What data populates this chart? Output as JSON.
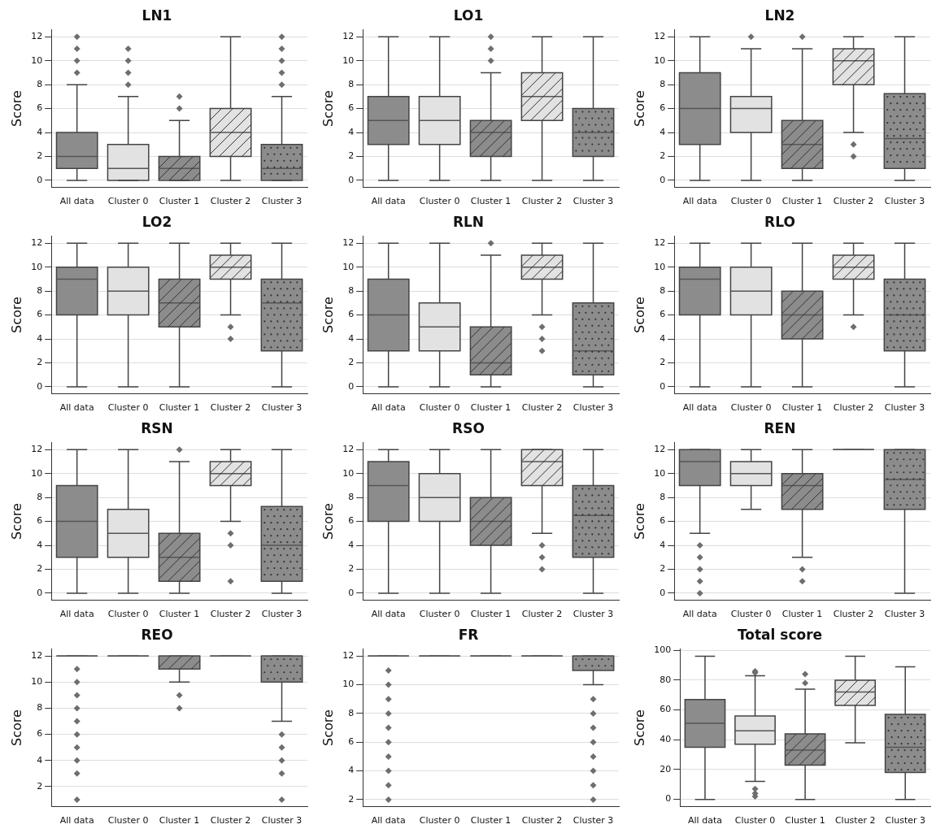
{
  "chart_data": [
    {
      "type": "box",
      "title": "LN1",
      "ylabel": "Score",
      "categories": [
        "All data",
        "Cluster 0",
        "Cluster 1",
        "Cluster 2",
        "Cluster 3"
      ],
      "colors": [
        "#8c8c8c",
        "#e2e2e2",
        "#8c8c8c",
        "#e2e2e2",
        "#8c8c8c"
      ],
      "ylim": [
        -0.6,
        12.6
      ],
      "yticks": [
        0,
        2,
        4,
        6,
        8,
        10,
        12
      ],
      "grid": "y",
      "marker": "diamond",
      "boxes": [
        {
          "low": 0,
          "q1": 1,
          "median": 2,
          "q3": 4,
          "high": 8,
          "outliers": [
            9,
            10,
            11,
            12
          ]
        },
        {
          "low": 0,
          "q1": 0,
          "median": 1,
          "q3": 3,
          "high": 7,
          "outliers": [
            8,
            9,
            10,
            11
          ]
        },
        {
          "low": 0,
          "q1": 0,
          "median": 1,
          "q3": 2,
          "high": 5,
          "outliers": [
            6,
            7
          ]
        },
        {
          "low": 0,
          "q1": 2,
          "median": 4,
          "q3": 6,
          "high": 12
        },
        {
          "low": 0,
          "q1": 0,
          "median": 1,
          "q3": 3,
          "high": 7,
          "outliers": [
            8,
            9,
            10,
            11,
            12
          ]
        }
      ]
    },
    {
      "type": "box",
      "title": "LO1",
      "ylabel": "Score",
      "categories": [
        "All data",
        "Cluster 0",
        "Cluster 1",
        "Cluster 2",
        "Cluster 3"
      ],
      "colors": [
        "#8c8c8c",
        "#e2e2e2",
        "#8c8c8c",
        "#e2e2e2",
        "#8c8c8c"
      ],
      "ylim": [
        -0.6,
        12.6
      ],
      "yticks": [
        0,
        2,
        4,
        6,
        8,
        10,
        12
      ],
      "grid": "y",
      "marker": "diamond",
      "boxes": [
        {
          "low": 0,
          "q1": 3,
          "median": 5,
          "q3": 7,
          "high": 12
        },
        {
          "low": 0,
          "q1": 3,
          "median": 5,
          "q3": 7,
          "high": 12
        },
        {
          "low": 0,
          "q1": 2,
          "median": 4,
          "q3": 5,
          "high": 9,
          "outliers": [
            10,
            11,
            12
          ]
        },
        {
          "low": 0,
          "q1": 5,
          "median": 7,
          "q3": 9,
          "high": 12
        },
        {
          "low": 0,
          "q1": 2,
          "median": 4,
          "q3": 6,
          "high": 12
        }
      ]
    },
    {
      "type": "box",
      "title": "LN2",
      "ylabel": "Score",
      "categories": [
        "All data",
        "Cluster 0",
        "Cluster 1",
        "Cluster 2",
        "Cluster 3"
      ],
      "colors": [
        "#8c8c8c",
        "#e2e2e2",
        "#8c8c8c",
        "#e2e2e2",
        "#8c8c8c"
      ],
      "ylim": [
        -0.6,
        12.6
      ],
      "yticks": [
        0,
        2,
        4,
        6,
        8,
        10,
        12
      ],
      "grid": "y",
      "marker": "diamond",
      "boxes": [
        {
          "low": 0,
          "q1": 3,
          "median": 6,
          "q3": 9,
          "high": 12
        },
        {
          "low": 0,
          "q1": 4,
          "median": 6,
          "q3": 7,
          "high": 11,
          "outliers": [
            12
          ]
        },
        {
          "low": 0,
          "q1": 1,
          "median": 3,
          "q3": 5,
          "high": 11,
          "outliers": [
            12
          ]
        },
        {
          "low": 4,
          "q1": 8,
          "median": 10,
          "q3": 11,
          "high": 12,
          "outliers": [
            2,
            3
          ]
        },
        {
          "low": 0,
          "q1": 1,
          "median": 3.5,
          "q3": 7.25,
          "high": 12
        }
      ]
    },
    {
      "type": "box",
      "title": "LO2",
      "ylabel": "Score",
      "categories": [
        "All data",
        "Cluster 0",
        "Cluster 1",
        "Cluster 2",
        "Cluster 3"
      ],
      "colors": [
        "#8c8c8c",
        "#e2e2e2",
        "#8c8c8c",
        "#e2e2e2",
        "#8c8c8c"
      ],
      "ylim": [
        -0.6,
        12.6
      ],
      "yticks": [
        0,
        2,
        4,
        6,
        8,
        10,
        12
      ],
      "grid": "y",
      "marker": "diamond",
      "boxes": [
        {
          "low": 0,
          "q1": 6,
          "median": 9,
          "q3": 10,
          "high": 12
        },
        {
          "low": 0,
          "q1": 6,
          "median": 8,
          "q3": 10,
          "high": 12
        },
        {
          "low": 0,
          "q1": 5,
          "median": 7,
          "q3": 9,
          "high": 12
        },
        {
          "low": 6,
          "q1": 9,
          "median": 10,
          "q3": 11,
          "high": 12,
          "outliers": [
            4,
            5
          ]
        },
        {
          "low": 0,
          "q1": 3,
          "median": 7,
          "q3": 9,
          "high": 12
        }
      ]
    },
    {
      "type": "box",
      "title": "RLN",
      "ylabel": "Score",
      "categories": [
        "All data",
        "Cluster 0",
        "Cluster 1",
        "Cluster 2",
        "Cluster 3"
      ],
      "colors": [
        "#8c8c8c",
        "#e2e2e2",
        "#8c8c8c",
        "#e2e2e2",
        "#8c8c8c"
      ],
      "ylim": [
        -0.6,
        12.6
      ],
      "yticks": [
        0,
        2,
        4,
        6,
        8,
        10,
        12
      ],
      "grid": "y",
      "marker": "diamond",
      "boxes": [
        {
          "low": 0,
          "q1": 3,
          "median": 6,
          "q3": 9,
          "high": 12
        },
        {
          "low": 0,
          "q1": 3,
          "median": 5,
          "q3": 7,
          "high": 12
        },
        {
          "low": 0,
          "q1": 1,
          "median": 2,
          "q3": 5,
          "high": 11,
          "outliers": [
            12
          ]
        },
        {
          "low": 6,
          "q1": 9,
          "median": 10,
          "q3": 11,
          "high": 12,
          "outliers": [
            3,
            4,
            5
          ]
        },
        {
          "low": 0,
          "q1": 1,
          "median": 3,
          "q3": 7,
          "high": 12
        }
      ]
    },
    {
      "type": "box",
      "title": "RLO",
      "ylabel": "Score",
      "categories": [
        "All data",
        "Cluster 0",
        "Cluster 1",
        "Cluster 2",
        "Cluster 3"
      ],
      "colors": [
        "#8c8c8c",
        "#e2e2e2",
        "#8c8c8c",
        "#e2e2e2",
        "#8c8c8c"
      ],
      "ylim": [
        -0.6,
        12.6
      ],
      "yticks": [
        0,
        2,
        4,
        6,
        8,
        10,
        12
      ],
      "grid": "y",
      "marker": "diamond",
      "boxes": [
        {
          "low": 0,
          "q1": 6,
          "median": 9,
          "q3": 10,
          "high": 12
        },
        {
          "low": 0,
          "q1": 6,
          "median": 8,
          "q3": 10,
          "high": 12
        },
        {
          "low": 0,
          "q1": 4,
          "median": 6,
          "q3": 8,
          "high": 12
        },
        {
          "low": 6,
          "q1": 9,
          "median": 10,
          "q3": 11,
          "high": 12,
          "outliers": [
            5
          ]
        },
        {
          "low": 0,
          "q1": 3,
          "median": 6,
          "q3": 9,
          "high": 12
        }
      ]
    },
    {
      "type": "box",
      "title": "RSN",
      "ylabel": "Score",
      "categories": [
        "All data",
        "Cluster 0",
        "Cluster 1",
        "Cluster 2",
        "Cluster 3"
      ],
      "colors": [
        "#8c8c8c",
        "#e2e2e2",
        "#8c8c8c",
        "#e2e2e2",
        "#8c8c8c"
      ],
      "ylim": [
        -0.6,
        12.6
      ],
      "yticks": [
        0,
        2,
        4,
        6,
        8,
        10,
        12
      ],
      "grid": "y",
      "marker": "diamond",
      "boxes": [
        {
          "low": 0,
          "q1": 3,
          "median": 6,
          "q3": 9,
          "high": 12
        },
        {
          "low": 0,
          "q1": 3,
          "median": 5,
          "q3": 7,
          "high": 12
        },
        {
          "low": 0,
          "q1": 1,
          "median": 3,
          "q3": 5,
          "high": 11,
          "outliers": [
            12
          ]
        },
        {
          "low": 6,
          "q1": 9,
          "median": 10,
          "q3": 11,
          "high": 12,
          "outliers": [
            1,
            4,
            5
          ]
        },
        {
          "low": 0,
          "q1": 1,
          "median": 4,
          "q3": 7.25,
          "high": 12
        }
      ]
    },
    {
      "type": "box",
      "title": "RSO",
      "ylabel": "Score",
      "categories": [
        "All data",
        "Cluster 0",
        "Cluster 1",
        "Cluster 2",
        "Cluster 3"
      ],
      "colors": [
        "#8c8c8c",
        "#e2e2e2",
        "#8c8c8c",
        "#e2e2e2",
        "#8c8c8c"
      ],
      "ylim": [
        -0.6,
        12.6
      ],
      "yticks": [
        0,
        2,
        4,
        6,
        8,
        10,
        12
      ],
      "grid": "y",
      "marker": "diamond",
      "boxes": [
        {
          "low": 0,
          "q1": 6,
          "median": 9,
          "q3": 11,
          "high": 12
        },
        {
          "low": 0,
          "q1": 6,
          "median": 8,
          "q3": 10,
          "high": 12
        },
        {
          "low": 0,
          "q1": 4,
          "median": 6,
          "q3": 8,
          "high": 12
        },
        {
          "low": 5,
          "q1": 9,
          "median": 11,
          "q3": 12,
          "high": 12,
          "outliers": [
            2,
            3,
            4
          ]
        },
        {
          "low": 0,
          "q1": 3,
          "median": 6.5,
          "q3": 9,
          "high": 12
        }
      ]
    },
    {
      "type": "box",
      "title": "REN",
      "ylabel": "Score",
      "categories": [
        "All data",
        "Cluster 0",
        "Cluster 1",
        "Cluster 2",
        "Cluster 3"
      ],
      "colors": [
        "#8c8c8c",
        "#e2e2e2",
        "#8c8c8c",
        "#444444",
        "#8c8c8c"
      ],
      "ylim": [
        -0.6,
        12.6
      ],
      "yticks": [
        0,
        2,
        4,
        6,
        8,
        10,
        12
      ],
      "grid": "y",
      "marker": "diamond",
      "boxes": [
        {
          "low": 5,
          "q1": 9,
          "median": 11,
          "q3": 12,
          "high": 12,
          "outliers": [
            0,
            1,
            2,
            3,
            4
          ]
        },
        {
          "low": 7,
          "q1": 9,
          "median": 10,
          "q3": 11,
          "high": 12
        },
        {
          "low": 3,
          "q1": 7,
          "median": 9,
          "q3": 10,
          "high": 12,
          "outliers": [
            1,
            2
          ]
        },
        {
          "low": 12,
          "q1": 12,
          "median": 12,
          "q3": 12,
          "high": 12
        },
        {
          "low": 0,
          "q1": 7,
          "median": 9.5,
          "q3": 12,
          "high": 12
        }
      ]
    },
    {
      "type": "box",
      "title": "REO",
      "ylabel": "Score",
      "categories": [
        "All data",
        "Cluster 0",
        "Cluster 1",
        "Cluster 2",
        "Cluster 3"
      ],
      "colors": [
        "#444444",
        "#444444",
        "#8c8c8c",
        "#444444",
        "#8c8c8c"
      ],
      "ylim": [
        0.45,
        12.55
      ],
      "yticks": [
        2,
        4,
        6,
        8,
        10,
        12
      ],
      "grid": "y",
      "marker": "diamond",
      "boxes": [
        {
          "low": 12,
          "q1": 12,
          "median": 12,
          "q3": 12,
          "high": 12,
          "outliers": [
            1,
            3,
            4,
            5,
            6,
            7,
            8,
            9,
            10,
            11
          ]
        },
        {
          "low": 12,
          "q1": 12,
          "median": 12,
          "q3": 12,
          "high": 12
        },
        {
          "low": 10,
          "q1": 11,
          "median": 12,
          "q3": 12,
          "high": 12,
          "outliers": [
            8,
            9
          ]
        },
        {
          "low": 12,
          "q1": 12,
          "median": 12,
          "q3": 12,
          "high": 12
        },
        {
          "low": 7,
          "q1": 10,
          "median": 12,
          "q3": 12,
          "high": 12,
          "outliers": [
            1,
            3,
            4,
            5,
            6
          ]
        }
      ]
    },
    {
      "type": "box",
      "title": "FR",
      "ylabel": "Score",
      "categories": [
        "All data",
        "Cluster 0",
        "Cluster 1",
        "Cluster 2",
        "Cluster 3"
      ],
      "colors": [
        "#444444",
        "#444444",
        "#444444",
        "#444444",
        "#8c8c8c"
      ],
      "ylim": [
        1.5,
        12.5
      ],
      "yticks": [
        2,
        4,
        6,
        8,
        10,
        12
      ],
      "grid": "y",
      "marker": "diamond",
      "boxes": [
        {
          "low": 12,
          "q1": 12,
          "median": 12,
          "q3": 12,
          "high": 12,
          "outliers": [
            2,
            3,
            4,
            5,
            6,
            7,
            8,
            9,
            10,
            11
          ]
        },
        {
          "low": 12,
          "q1": 12,
          "median": 12,
          "q3": 12,
          "high": 12
        },
        {
          "low": 12,
          "q1": 12,
          "median": 12,
          "q3": 12,
          "high": 12
        },
        {
          "low": 12,
          "q1": 12,
          "median": 12,
          "q3": 12,
          "high": 12
        },
        {
          "low": 10,
          "q1": 11,
          "median": 12,
          "q3": 12,
          "high": 12,
          "outliers": [
            2,
            3,
            4,
            5,
            6,
            7,
            8,
            9
          ]
        }
      ]
    },
    {
      "type": "box",
      "title": "Total score",
      "ylabel": "Score",
      "categories": [
        "All data",
        "Cluster 0",
        "Cluster 1",
        "Cluster 2",
        "Cluster 3"
      ],
      "colors": [
        "#8c8c8c",
        "#e2e2e2",
        "#8c8c8c",
        "#e2e2e2",
        "#8c8c8c"
      ],
      "ylim": [
        -5,
        101
      ],
      "yticks": [
        0,
        20,
        40,
        60,
        80,
        100
      ],
      "grid": "y",
      "marker": "diamond",
      "boxes": [
        {
          "low": 0,
          "q1": 35,
          "median": 51,
          "q3": 67,
          "high": 96
        },
        {
          "low": 12,
          "q1": 37,
          "median": 46,
          "q3": 56,
          "high": 83,
          "outliers": [
            2,
            4,
            7,
            85,
            86
          ]
        },
        {
          "low": 0,
          "q1": 23,
          "median": 33,
          "q3": 44,
          "high": 74,
          "outliers": [
            78,
            84
          ]
        },
        {
          "low": 38,
          "q1": 63,
          "median": 72,
          "q3": 80,
          "high": 96
        },
        {
          "low": 0,
          "q1": 18,
          "median": 35,
          "q3": 57,
          "high": 89
        }
      ]
    }
  ]
}
